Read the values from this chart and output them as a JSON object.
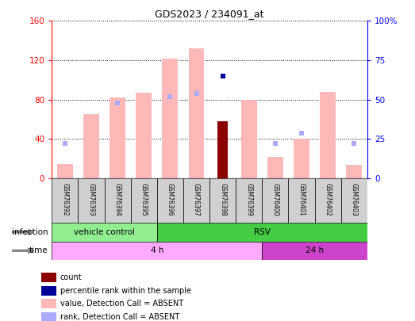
{
  "title": "GDS2023 / 234091_at",
  "samples": [
    "GSM76392",
    "GSM76393",
    "GSM76394",
    "GSM76395",
    "GSM76396",
    "GSM76397",
    "GSM76398",
    "GSM76399",
    "GSM76400",
    "GSM76401",
    "GSM76402",
    "GSM76403"
  ],
  "values_absent": [
    15,
    65,
    82,
    87,
    122,
    132,
    null,
    80,
    22,
    40,
    88,
    14
  ],
  "ranks_absent": [
    22,
    null,
    48,
    null,
    52,
    54,
    null,
    null,
    22,
    29,
    null,
    22
  ],
  "count_value": [
    null,
    null,
    null,
    null,
    null,
    null,
    58,
    null,
    null,
    null,
    null,
    null
  ],
  "percentile_rank": [
    null,
    null,
    null,
    null,
    null,
    null,
    65,
    null,
    null,
    null,
    null,
    null
  ],
  "ylim": [
    0,
    160
  ],
  "y2lim": [
    0,
    100
  ],
  "yticks": [
    0,
    40,
    80,
    120,
    160
  ],
  "y2ticks": [
    0,
    25,
    50,
    75,
    100
  ],
  "ytick_labels": [
    "0",
    "40",
    "80",
    "120",
    "160"
  ],
  "y2tick_labels": [
    "0",
    "25",
    "50",
    "75",
    "100%"
  ],
  "color_value_absent": "#ffb8b8",
  "color_rank_absent": "#aaaaff",
  "color_count": "#8b0000",
  "color_percentile": "#000099",
  "infection_vc_color": "#90ee90",
  "infection_rsv_color": "#44cc44",
  "time_4h_color": "#ffaaff",
  "time_24h_color": "#cc44cc",
  "legend_items": [
    {
      "label": "count",
      "color": "#8b0000"
    },
    {
      "label": "percentile rank within the sample",
      "color": "#000099"
    },
    {
      "label": "value, Detection Call = ABSENT",
      "color": "#ffb8b8"
    },
    {
      "label": "rank, Detection Call = ABSENT",
      "color": "#aaaaff"
    }
  ]
}
